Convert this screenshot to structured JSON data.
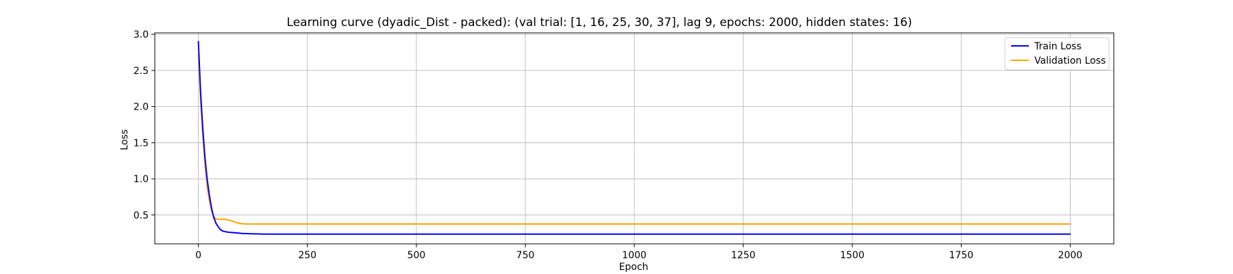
{
  "chart_data": {
    "type": "line",
    "title": "Learning curve (dyadic_Dist - packed): (val trial: [1, 16, 25, 30, 37], lag 9, epochs: 2000, hidden states: 16)",
    "xlabel": "Epoch",
    "ylabel": "Loss",
    "xlim": [
      -100,
      2100
    ],
    "ylim": [
      0.1,
      3.02
    ],
    "xticks": [
      0,
      250,
      500,
      750,
      1000,
      1250,
      1500,
      1750,
      2000
    ],
    "yticks": [
      0.5,
      1.0,
      1.5,
      2.0,
      2.5,
      3.0
    ],
    "xtick_labels": [
      "0",
      "250",
      "500",
      "750",
      "1000",
      "1250",
      "1500",
      "1750",
      "2000"
    ],
    "ytick_labels": [
      "0.5",
      "1.0",
      "1.5",
      "2.0",
      "2.5",
      "3.0"
    ],
    "grid": true,
    "legend_position": "top-right",
    "series": [
      {
        "name": "Train Loss",
        "color": "#0000ff",
        "x": [
          0,
          5,
          10,
          15,
          20,
          25,
          30,
          35,
          40,
          45,
          50,
          55,
          60,
          70,
          80,
          90,
          100,
          120,
          150,
          200,
          300,
          500,
          750,
          1000,
          1250,
          1500,
          1750,
          2000
        ],
        "y": [
          2.9,
          2.2,
          1.7,
          1.3,
          1.0,
          0.78,
          0.6,
          0.47,
          0.39,
          0.34,
          0.3,
          0.28,
          0.27,
          0.26,
          0.255,
          0.25,
          0.245,
          0.24,
          0.235,
          0.235,
          0.235,
          0.235,
          0.235,
          0.235,
          0.235,
          0.235,
          0.235,
          0.235
        ]
      },
      {
        "name": "Validation Loss",
        "color": "#ffa500",
        "x": [
          0,
          5,
          10,
          15,
          20,
          25,
          30,
          35,
          40,
          45,
          50,
          55,
          60,
          70,
          80,
          90,
          100,
          110,
          120,
          150,
          200,
          300,
          500,
          750,
          1000,
          1250,
          1500,
          1750,
          2000
        ],
        "y": [
          2.72,
          2.1,
          1.6,
          1.2,
          0.9,
          0.7,
          0.56,
          0.48,
          0.45,
          0.44,
          0.44,
          0.44,
          0.44,
          0.43,
          0.41,
          0.39,
          0.38,
          0.375,
          0.375,
          0.375,
          0.375,
          0.375,
          0.375,
          0.375,
          0.375,
          0.375,
          0.375,
          0.375,
          0.375
        ]
      }
    ]
  }
}
